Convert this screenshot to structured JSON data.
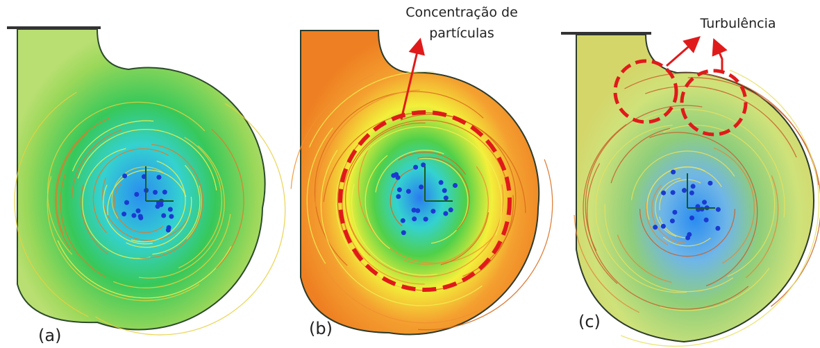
{
  "panels": [
    {
      "label": "(a)"
    },
    {
      "label": "(b)"
    },
    {
      "label": "(c)"
    }
  ],
  "annotations": {
    "particles": [
      "Concentração de",
      "partículas"
    ],
    "turbulence": "Turbulência"
  }
}
